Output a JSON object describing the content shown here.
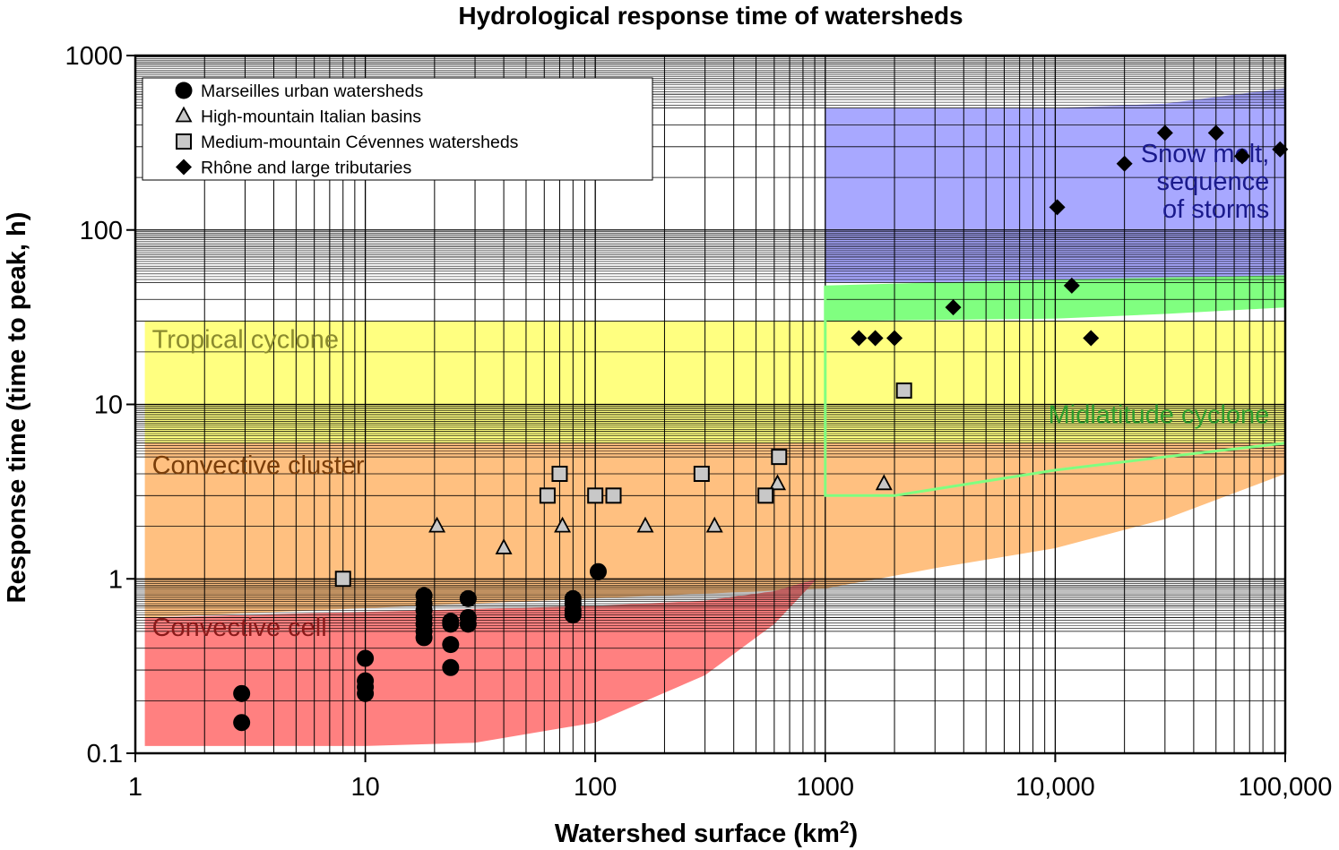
{
  "chart_data": {
    "type": "scatter",
    "title": "Hydrological response time of watersheds",
    "xlabel": "Watershed surface (km",
    "xlabel_sup": "2",
    "xlabel_end": ")",
    "ylabel": "Response time (time to peak, h)",
    "x_scale": "log",
    "y_scale": "log",
    "xlim": [
      1,
      100000
    ],
    "ylim": [
      0.1,
      1000
    ],
    "x_ticks": [
      {
        "value": 1,
        "label": "1"
      },
      {
        "value": 10,
        "label": "10"
      },
      {
        "value": 100,
        "label": "100"
      },
      {
        "value": 1000,
        "label": "1000"
      },
      {
        "value": 10000,
        "label": "10,000"
      },
      {
        "value": 100000,
        "label": "100,000"
      }
    ],
    "y_ticks": [
      {
        "value": 0.1,
        "label": "0.1"
      },
      {
        "value": 1,
        "label": "1"
      },
      {
        "value": 10,
        "label": "10"
      },
      {
        "value": 100,
        "label": "100"
      },
      {
        "value": 1000,
        "label": "1000"
      }
    ],
    "grid": true,
    "legend_position": "top-left",
    "regions": [
      {
        "name": "Tropical cyclone",
        "label": "Tropical cyclone",
        "color": "#ffff80",
        "label_color": "#8a8a2e",
        "label_at": [
          1.1,
          21
        ],
        "boundary": [
          [
            1.1,
            6
          ],
          [
            1.1,
            30
          ],
          [
            100000,
            30
          ],
          [
            100000,
            6
          ]
        ]
      },
      {
        "name": "Convective cluster",
        "label": "Convective cluster",
        "color": "#ffc080",
        "label_color": "#7a3e0a",
        "label_at": [
          1.1,
          4
        ],
        "boundary": [
          [
            1.1,
            0.6
          ],
          [
            1.1,
            6
          ],
          [
            100000,
            6
          ],
          [
            100000,
            4
          ],
          [
            30000,
            2.2
          ],
          [
            10000,
            1.5
          ],
          [
            3000,
            1.15
          ],
          [
            1000,
            0.88
          ]
        ]
      },
      {
        "name": "Convective cell",
        "label": "Convective cell",
        "color": "#ff8080",
        "label_color": "#8b1a1a",
        "label_at": [
          1.1,
          0.47
        ],
        "boundary": [
          [
            1.1,
            0.11
          ],
          [
            1.1,
            0.6
          ],
          [
            100,
            0.7
          ],
          [
            300,
            0.75
          ],
          [
            600,
            0.85
          ],
          [
            920,
            1.0
          ],
          [
            600,
            0.55
          ],
          [
            300,
            0.28
          ],
          [
            100,
            0.15
          ],
          [
            30,
            0.115
          ],
          [
            10,
            0.11
          ]
        ]
      },
      {
        "name": "Snow melt, sequence of storms",
        "label_lines": [
          "Snow melt,",
          "sequence",
          "of storms"
        ],
        "color": "#a8a8ff",
        "label_color": "#1a1a8c",
        "label_at": [
          95000,
          170
        ],
        "boundary": [
          [
            1000,
            50
          ],
          [
            1000,
            500
          ],
          [
            3000,
            500
          ],
          [
            10000,
            500
          ],
          [
            30000,
            530
          ],
          [
            100000,
            650
          ],
          [
            100000,
            50
          ]
        ]
      },
      {
        "name": "Midlatitude cyclone",
        "label": "Midlatitude cyclone",
        "color": "#80ff80",
        "label_color": "#2e9c2e",
        "label_at": [
          95000,
          7.8
        ],
        "boundary": [
          [
            1000,
            30
          ],
          [
            1000,
            48
          ],
          [
            3000,
            50
          ],
          [
            10000,
            52
          ],
          [
            100000,
            55
          ],
          [
            100000,
            36
          ],
          [
            30000,
            33
          ],
          [
            10000,
            31
          ]
        ],
        "outline": [
          [
            1000,
            48
          ],
          [
            1000,
            3
          ],
          [
            2000,
            3
          ],
          [
            10000,
            4.2
          ],
          [
            30000,
            5
          ],
          [
            100000,
            6
          ]
        ]
      }
    ],
    "series": [
      {
        "name": "Marseilles urban watersheds",
        "marker": "circle",
        "fill": "#000000",
        "points": [
          [
            2.9,
            0.22
          ],
          [
            2.9,
            0.15
          ],
          [
            10,
            0.35
          ],
          [
            10,
            0.26
          ],
          [
            10,
            0.24
          ],
          [
            10,
            0.22
          ],
          [
            18,
            0.8
          ],
          [
            18,
            0.72
          ],
          [
            18,
            0.66
          ],
          [
            18,
            0.6
          ],
          [
            18,
            0.55
          ],
          [
            18,
            0.5
          ],
          [
            18,
            0.46
          ],
          [
            23.5,
            0.57
          ],
          [
            23.5,
            0.55
          ],
          [
            23.5,
            0.42
          ],
          [
            23.5,
            0.31
          ],
          [
            28,
            0.77
          ],
          [
            28,
            0.6
          ],
          [
            28,
            0.55
          ],
          [
            80,
            0.77
          ],
          [
            80,
            0.72
          ],
          [
            80,
            0.66
          ],
          [
            80,
            0.62
          ],
          [
            103,
            1.1
          ]
        ]
      },
      {
        "name": "High-mountain Italian basins",
        "marker": "triangle",
        "fill": "#c8c8c8",
        "points": [
          [
            20.5,
            2
          ],
          [
            40,
            1.5
          ],
          [
            72,
            2
          ],
          [
            165,
            2
          ],
          [
            330,
            2
          ],
          [
            620,
            3.5
          ],
          [
            1800,
            3.5
          ]
        ]
      },
      {
        "name": "Medium-mountain Cévennes watersheds",
        "marker": "square",
        "fill": "#c8c8c8",
        "points": [
          [
            8,
            1
          ],
          [
            62,
            3
          ],
          [
            70,
            4
          ],
          [
            100,
            3
          ],
          [
            120,
            3
          ],
          [
            290,
            4
          ],
          [
            550,
            3
          ],
          [
            630,
            5
          ],
          [
            2200,
            12
          ]
        ]
      },
      {
        "name": "Rhône and large tributaries",
        "marker": "diamond",
        "fill": "#000000",
        "points": [
          [
            1400,
            24
          ],
          [
            1650,
            24
          ],
          [
            2000,
            24
          ],
          [
            3600,
            36
          ],
          [
            10200,
            135
          ],
          [
            11800,
            48
          ],
          [
            14300,
            24
          ],
          [
            20000,
            240
          ],
          [
            30000,
            360
          ],
          [
            50000,
            360
          ],
          [
            65000,
            265
          ],
          [
            95000,
            290
          ]
        ]
      }
    ]
  }
}
